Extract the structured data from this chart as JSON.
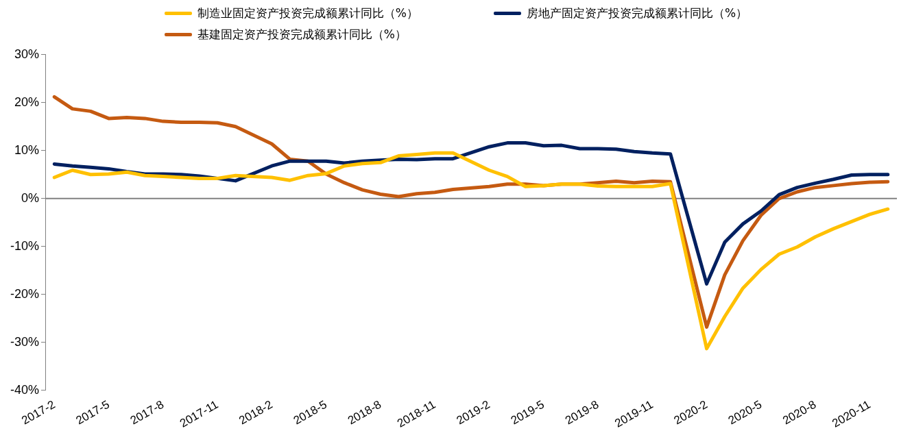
{
  "chart_data": {
    "type": "line",
    "categories": [
      "2017-2",
      null,
      null,
      "2017-5",
      null,
      null,
      "2017-8",
      null,
      null,
      "2017-11",
      null,
      null,
      "2018-2",
      null,
      null,
      "2018-5",
      null,
      null,
      "2018-8",
      null,
      null,
      "2018-11",
      null,
      null,
      "2019-2",
      null,
      null,
      "2019-5",
      null,
      null,
      "2019-8",
      null,
      null,
      "2019-11",
      null,
      null,
      "2020-2",
      null,
      null,
      "2020-5",
      null,
      null,
      "2020-8",
      null,
      null,
      "2020-11",
      null
    ],
    "series": [
      {
        "name": "制造业固定资产投资完成额累计同比（%）",
        "color": "#ffc000",
        "values": [
          4.4,
          5.9,
          5.0,
          5.1,
          5.5,
          4.8,
          4.6,
          4.4,
          4.2,
          4.2,
          4.8,
          null,
          4.4,
          3.8,
          4.8,
          5.2,
          6.8,
          7.3,
          7.5,
          8.9,
          9.2,
          9.5,
          9.5,
          null,
          5.9,
          4.6,
          2.5,
          2.7,
          3.0,
          3.0,
          2.6,
          2.5,
          2.5,
          2.5,
          3.1,
          null,
          -31.3,
          -24.6,
          -18.7,
          -14.8,
          -11.6,
          -10.1,
          -8.0,
          -6.3,
          -4.8,
          -3.3,
          -2.2
        ]
      },
      {
        "name": "房地产固定资产投资完成额累计同比（%）",
        "color": "#002060",
        "values": [
          7.2,
          6.8,
          6.5,
          6.2,
          5.6,
          5.1,
          5.1,
          5.0,
          4.7,
          4.2,
          3.7,
          null,
          6.8,
          7.8,
          7.8,
          7.8,
          7.4,
          7.8,
          8.0,
          8.2,
          8.1,
          8.3,
          8.3,
          null,
          10.8,
          11.6,
          11.6,
          11.0,
          11.1,
          10.4,
          10.4,
          10.3,
          9.8,
          9.5,
          9.3,
          null,
          -17.8,
          -9.1,
          -5.3,
          -2.6,
          0.8,
          2.3,
          3.2,
          4.0,
          4.9,
          5.0,
          5.0
        ]
      },
      {
        "name": "基建固定资产投资完成额累计同比（%）",
        "color": "#c55a11",
        "values": [
          21.2,
          18.7,
          18.2,
          16.7,
          16.9,
          16.7,
          16.1,
          15.9,
          15.9,
          15.8,
          15.0,
          null,
          11.4,
          8.2,
          7.8,
          5.1,
          3.3,
          1.8,
          0.9,
          0.4,
          1.0,
          1.3,
          1.9,
          null,
          2.5,
          3.0,
          3.0,
          2.7,
          3.0,
          3.0,
          3.3,
          3.6,
          3.3,
          3.6,
          3.5,
          null,
          -26.8,
          -15.9,
          -8.8,
          -3.5,
          0.0,
          1.4,
          2.3,
          2.7,
          3.1,
          3.4,
          3.5
        ]
      }
    ],
    "ylim": [
      -40,
      30
    ],
    "yticks": [
      {
        "value": -40,
        "label": "-40%"
      },
      {
        "value": -30,
        "label": "-30%"
      },
      {
        "value": -20,
        "label": "-20%"
      },
      {
        "value": -10,
        "label": "-10%"
      },
      {
        "value": 0,
        "label": "0%"
      },
      {
        "value": 10,
        "label": "10%"
      },
      {
        "value": 20,
        "label": "20%"
      },
      {
        "value": 30,
        "label": "30%"
      }
    ],
    "ref_lines": [
      {
        "axis": "y",
        "value": 0,
        "color": "#808080"
      }
    ],
    "legend": "top",
    "grid": false,
    "marker": "none",
    "line_style": "solid"
  }
}
